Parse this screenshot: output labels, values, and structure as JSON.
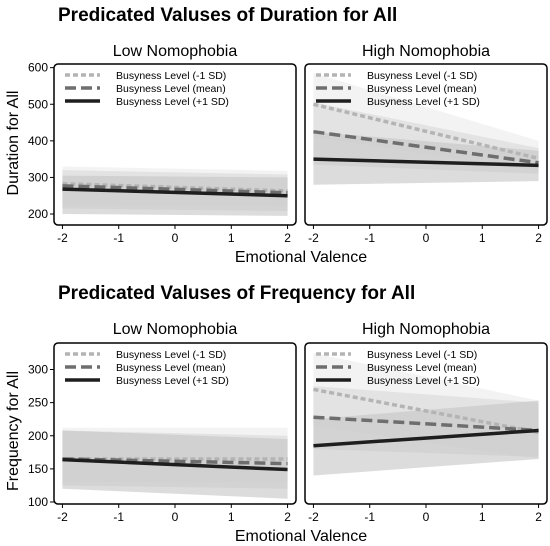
{
  "chart_data": [
    {
      "type": "line",
      "title": "Predicated Valuses of Duration for All",
      "xlabel": "Emotional Valence",
      "ylabel": "Duration for All",
      "xlim": [
        -2.15,
        2.15
      ],
      "ylim": [
        170,
        610
      ],
      "xticks": [
        "-2",
        "-1",
        "0",
        "1",
        "2"
      ],
      "yticks": [
        "200",
        "300",
        "400",
        "500",
        "600"
      ],
      "legend_position": "top-left",
      "legend": [
        "Busyness Level (-1 SD)",
        "Busyness Level (mean)",
        "Busyness Level (+1 SD)"
      ],
      "panels": [
        {
          "label": "Low Nomophobia",
          "series": [
            {
              "name": "Busyness Level (-1 SD)",
              "x": [
                -2,
                2
              ],
              "y": [
                283,
                263
              ],
              "ci_lower": [
                225,
                222
              ],
              "ci_upper": [
                330,
                318
              ]
            },
            {
              "name": "Busyness Level (mean)",
              "x": [
                -2,
                2
              ],
              "y": [
                277,
                258
              ],
              "ci_lower": [
                215,
                208
              ],
              "ci_upper": [
                320,
                308
              ]
            },
            {
              "name": "Busyness Level (+1 SD)",
              "x": [
                -2,
                2
              ],
              "y": [
                268,
                250
              ],
              "ci_lower": [
                200,
                195
              ],
              "ci_upper": [
                305,
                300
              ]
            }
          ]
        },
        {
          "label": "High Nomophobia",
          "series": [
            {
              "name": "Busyness Level (-1 SD)",
              "x": [
                -2,
                2
              ],
              "y": [
                500,
                352
              ],
              "ci_lower": [
                410,
                318
              ],
              "ci_upper": [
                585,
                400
              ]
            },
            {
              "name": "Busyness Level (mean)",
              "x": [
                -2,
                2
              ],
              "y": [
                425,
                340
              ],
              "ci_lower": [
                335,
                310
              ],
              "ci_upper": [
                505,
                380
              ]
            },
            {
              "name": "Busyness Level (+1 SD)",
              "x": [
                -2,
                2
              ],
              "y": [
                350,
                333
              ],
              "ci_lower": [
                280,
                290
              ],
              "ci_upper": [
                425,
                373
              ]
            }
          ]
        }
      ]
    },
    {
      "type": "line",
      "title": "Predicated Valuses of Frequency for All",
      "xlabel": "Emotional Valence",
      "ylabel": "Frequency for All",
      "xlim": [
        -2.15,
        2.15
      ],
      "ylim": [
        97,
        340
      ],
      "xticks": [
        "-2",
        "-1",
        "0",
        "1",
        "2"
      ],
      "yticks": [
        "100",
        "150",
        "200",
        "250",
        "300"
      ],
      "legend_position": "top-left",
      "legend": [
        "Busyness Level (-1 SD)",
        "Busyness Level (mean)",
        "Busyness Level (+1 SD)"
      ],
      "panels": [
        {
          "label": "Low Nomophobia",
          "series": [
            {
              "name": "Busyness Level (-1 SD)",
              "x": [
                -2,
                2
              ],
              "y": [
                165,
                165
              ],
              "ci_lower": [
                130,
                130
              ],
              "ci_upper": [
                212,
                212
              ]
            },
            {
              "name": "Busyness Level (mean)",
              "x": [
                -2,
                2
              ],
              "y": [
                165,
                158
              ],
              "ci_lower": [
                125,
                120
              ],
              "ci_upper": [
                208,
                200
              ]
            },
            {
              "name": "Busyness Level (+1 SD)",
              "x": [
                -2,
                2
              ],
              "y": [
                164,
                149
              ],
              "ci_lower": [
                120,
                105
              ],
              "ci_upper": [
                208,
                195
              ]
            }
          ]
        },
        {
          "label": "High Nomophobia",
          "series": [
            {
              "name": "Busyness Level (-1 SD)",
              "x": [
                -2,
                2
              ],
              "y": [
                270,
                205
              ],
              "ci_lower": [
                215,
                165
              ],
              "ci_upper": [
                325,
                253
              ]
            },
            {
              "name": "Busyness Level (mean)",
              "x": [
                -2,
                2
              ],
              "y": [
                228,
                208
              ],
              "ci_lower": [
                180,
                168
              ],
              "ci_upper": [
                275,
                250
              ]
            },
            {
              "name": "Busyness Level (+1 SD)",
              "x": [
                -2,
                2
              ],
              "y": [
                185,
                208
              ],
              "ci_lower": [
                140,
                165
              ],
              "ci_upper": [
                225,
                253
              ]
            }
          ]
        }
      ]
    }
  ],
  "styles": {
    "series_colors": [
      "#b4b4b4",
      "#6e6e6e",
      "#1e1e1e"
    ],
    "band_colors": [
      "#ececec",
      "#d9d9d9",
      "#c6c6c6"
    ],
    "series_dash": [
      "dotted",
      "dashed",
      "solid"
    ]
  }
}
